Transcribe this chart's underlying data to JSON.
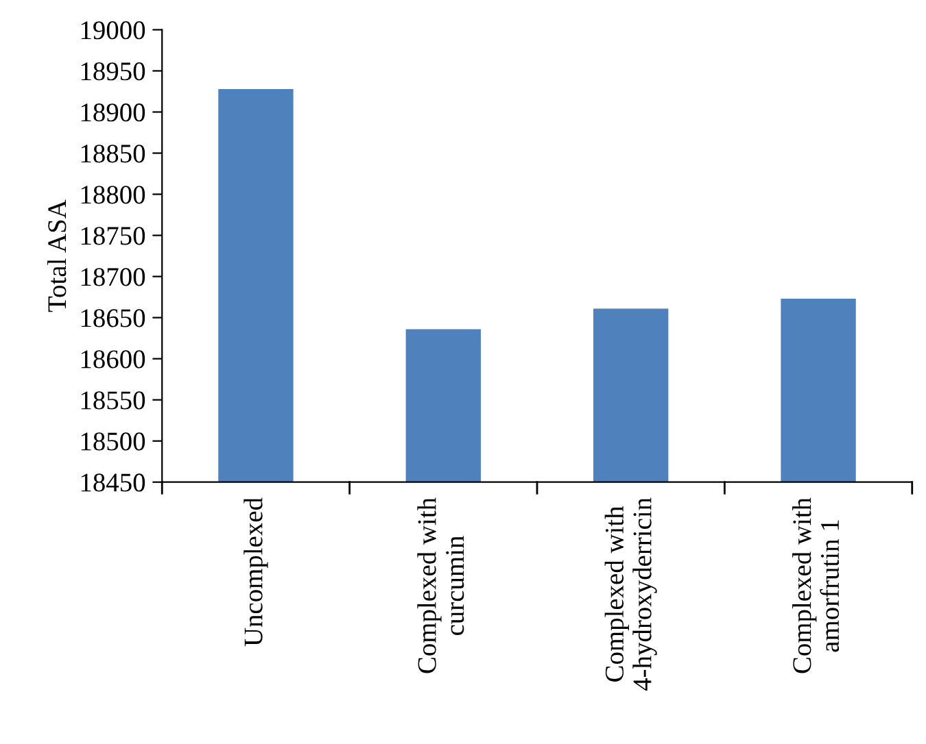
{
  "chart_data": {
    "type": "bar",
    "ylabel": "Total ASA",
    "categories": [
      "Uncomplexed",
      "Complexed with\ncurcumin",
      "Complexed with\n4-hydroxyderricin",
      "Complexed with\namorfrutin 1"
    ],
    "values": [
      18928,
      18636,
      18661,
      18673
    ],
    "color": "#4f81bd",
    "ylim": [
      18450,
      19000
    ],
    "yticks": [
      18450,
      18500,
      18550,
      18600,
      18650,
      18700,
      18750,
      18800,
      18850,
      18900,
      18950,
      19000
    ],
    "grid": false,
    "legend": false
  }
}
